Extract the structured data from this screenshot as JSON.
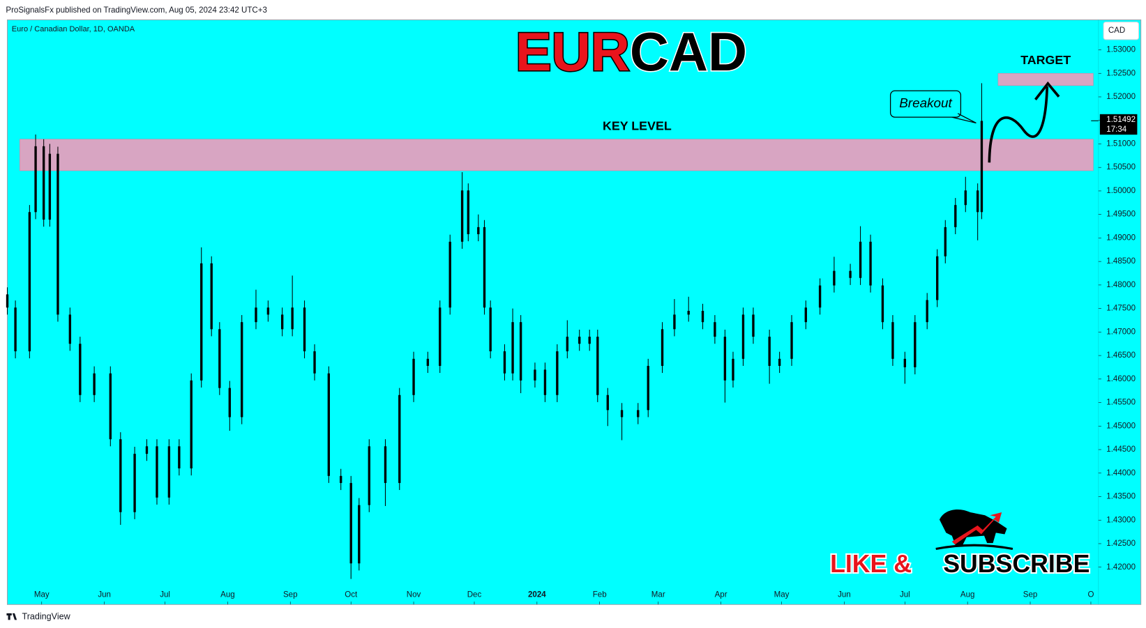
{
  "chart_data": {
    "type": "candlestick",
    "published": "ProSignalsFx published on TradingView.com, Aug 05, 2024 23:42 UTC+3",
    "symbol": "Euro / Canadian Dollar, 1D, OANDA",
    "title_base": "EUR",
    "title_quote": "CAD",
    "currency": "CAD",
    "color": "#000000",
    "background": "#00ffff",
    "x": [
      -17,
      -13,
      -6,
      -3,
      1,
      4,
      8,
      14,
      19,
      26,
      34,
      39,
      46,
      52,
      57,
      63,
      68,
      74,
      79,
      84,
      88,
      93,
      99,
      106,
      112,
      119,
      124,
      130,
      135,
      142,
      148,
      153,
      157,
      162,
      170,
      177,
      184,
      191,
      197,
      202,
      208,
      211,
      216,
      219,
      222,
      229,
      233,
      237,
      244,
      249,
      255,
      260,
      266,
      271,
      275,
      280,
      287,
      295,
      300,
      307,
      313,
      320,
      327,
      333,
      338,
      342,
      347,
      352,
      360,
      365,
      371,
      378,
      385,
      392,
      400,
      405,
      410,
      416,
      421,
      427,
      432,
      438,
      443,
      447,
      452,
      457,
      463,
      465
    ],
    "open": [
      1.478,
      1.4752,
      1.4659,
      1.4955,
      1.5095,
      1.4939,
      1.5079,
      1.4737,
      1.4675,
      1.4566,
      1.4612,
      1.4472,
      1.4317,
      1.4441,
      1.4457,
      1.4348,
      1.4457,
      1.441,
      1.4597,
      1.4846,
      1.4706,
      1.4581,
      1.4519,
      1.4721,
      1.4752,
      1.4737,
      1.4706,
      1.4752,
      1.4659,
      1.4612,
      1.4394,
      1.4379,
      1.4208,
      1.4332,
      1.4457,
      1.4379,
      1.4566,
      1.4643,
      1.4628,
      1.4752,
      1.4892,
      1.5001,
      1.4908,
      1.4923,
      1.4752,
      1.4659,
      1.4612,
      1.4721,
      1.4597,
      1.462,
      1.4566,
      1.4659,
      1.469,
      1.4675,
      1.469,
      1.4566,
      1.4534,
      1.4519,
      1.4534,
      1.4628,
      1.4706,
      1.4737,
      1.4745,
      1.4721,
      1.469,
      1.4597,
      1.4643,
      1.4737,
      1.469,
      1.4628,
      1.4643,
      1.4721,
      1.4752,
      1.4799,
      1.483,
      1.4815,
      1.4892,
      1.4799,
      1.4721,
      1.4643,
      1.4625,
      1.4721,
      1.4768,
      1.4861,
      1.4923,
      1.497,
      1.5001,
      1.4955
    ],
    "high": [
      1.4795,
      1.4767,
      1.497,
      1.512,
      1.511,
      1.51,
      1.5094,
      1.4752,
      1.469,
      1.4627,
      1.4627,
      1.4487,
      1.4456,
      1.4472,
      1.4472,
      1.4472,
      1.4472,
      1.4612,
      1.488,
      1.4861,
      1.4721,
      1.4596,
      1.4736,
      1.479,
      1.4767,
      1.4752,
      1.482,
      1.4767,
      1.4674,
      1.4627,
      1.4409,
      1.4394,
      1.4347,
      1.4472,
      1.4472,
      1.4581,
      1.4658,
      1.4658,
      1.4767,
      1.4907,
      1.504,
      1.5016,
      1.495,
      1.4938,
      1.4767,
      1.4674,
      1.475,
      1.4736,
      1.4635,
      1.4635,
      1.4674,
      1.4725,
      1.4705,
      1.4705,
      1.4705,
      1.4581,
      1.4549,
      1.4549,
      1.4643,
      1.4721,
      1.477,
      1.4775,
      1.476,
      1.4736,
      1.4705,
      1.4658,
      1.4752,
      1.4752,
      1.4705,
      1.4658,
      1.4736,
      1.4767,
      1.4814,
      1.486,
      1.4845,
      1.4925,
      1.4907,
      1.4814,
      1.4736,
      1.4658,
      1.4736,
      1.4783,
      1.4876,
      1.4938,
      1.4985,
      1.503,
      1.5016,
      1.5229
    ],
    "low": [
      1.4737,
      1.4644,
      1.4644,
      1.494,
      1.4924,
      1.4924,
      1.4722,
      1.466,
      1.4551,
      1.4551,
      1.4457,
      1.429,
      1.4302,
      1.4426,
      1.4333,
      1.4333,
      1.4395,
      1.4395,
      1.4582,
      1.4691,
      1.4566,
      1.449,
      1.4504,
      1.4706,
      1.4722,
      1.4691,
      1.4691,
      1.4644,
      1.4597,
      1.4379,
      1.4364,
      1.4175,
      1.4193,
      1.4317,
      1.433,
      1.4364,
      1.4551,
      1.4613,
      1.4613,
      1.4737,
      1.4877,
      1.4893,
      1.4893,
      1.4737,
      1.4644,
      1.4597,
      1.4597,
      1.457,
      1.4582,
      1.4551,
      1.4551,
      1.4644,
      1.466,
      1.466,
      1.4551,
      1.45,
      1.447,
      1.4504,
      1.4519,
      1.4613,
      1.4691,
      1.4722,
      1.4706,
      1.4675,
      1.455,
      1.4582,
      1.4628,
      1.4675,
      1.459,
      1.4613,
      1.4628,
      1.4706,
      1.4737,
      1.4784,
      1.48,
      1.48,
      1.4784,
      1.4706,
      1.4628,
      1.459,
      1.461,
      1.4706,
      1.4753,
      1.4846,
      1.4908,
      1.4955,
      1.4895,
      1.494
    ],
    "close": [
      1.4752,
      1.4659,
      1.4955,
      1.5095,
      1.4939,
      1.5079,
      1.4737,
      1.4675,
      1.4566,
      1.4612,
      1.4472,
      1.4317,
      1.4441,
      1.4457,
      1.4348,
      1.4457,
      1.441,
      1.4597,
      1.4846,
      1.4706,
      1.4581,
      1.4519,
      1.4721,
      1.4752,
      1.4737,
      1.4706,
      1.4752,
      1.4659,
      1.4612,
      1.4394,
      1.4379,
      1.4208,
      1.4332,
      1.4457,
      1.4379,
      1.4566,
      1.4643,
      1.4628,
      1.4752,
      1.4892,
      1.5001,
      1.4908,
      1.4923,
      1.4752,
      1.4659,
      1.4612,
      1.4721,
      1.4597,
      1.462,
      1.4566,
      1.4659,
      1.469,
      1.4675,
      1.469,
      1.4566,
      1.4534,
      1.4519,
      1.4534,
      1.4628,
      1.4706,
      1.4737,
      1.4745,
      1.4721,
      1.469,
      1.4597,
      1.4643,
      1.4737,
      1.469,
      1.4628,
      1.4643,
      1.4721,
      1.4752,
      1.4799,
      1.483,
      1.4815,
      1.4892,
      1.4799,
      1.4721,
      1.4643,
      1.4625,
      1.4721,
      1.4768,
      1.4861,
      1.4923,
      1.497,
      1.5001,
      1.4955,
      1.5149
    ],
    "xlim": [
      -17,
      522
    ],
    "xticks": [
      {
        "value": 0,
        "label": "May"
      },
      {
        "value": 31,
        "label": "Jun"
      },
      {
        "value": 61,
        "label": "Jul"
      },
      {
        "value": 92,
        "label": "Aug"
      },
      {
        "value": 123,
        "label": "Sep"
      },
      {
        "value": 153,
        "label": "Oct"
      },
      {
        "value": 184,
        "label": "Nov"
      },
      {
        "value": 214,
        "label": "Dec"
      },
      {
        "value": 245,
        "label": "2024"
      },
      {
        "value": 276,
        "label": "Feb"
      },
      {
        "value": 305,
        "label": "Mar"
      },
      {
        "value": 336,
        "label": "Apr"
      },
      {
        "value": 366,
        "label": "May"
      },
      {
        "value": 397,
        "label": "Jun"
      },
      {
        "value": 427,
        "label": "Jul"
      },
      {
        "value": 458,
        "label": "Aug"
      },
      {
        "value": 489,
        "label": "Sep"
      },
      {
        "value": 519,
        "label": "O"
      }
    ],
    "ylim": [
      1.41206,
      1.53638
    ],
    "yticks": [
      {
        "value": 1.42,
        "label": "1.42000"
      },
      {
        "value": 1.425,
        "label": "1.42500"
      },
      {
        "value": 1.43,
        "label": "1.43000"
      },
      {
        "value": 1.435,
        "label": "1.43500"
      },
      {
        "value": 1.44,
        "label": "1.44000"
      },
      {
        "value": 1.445,
        "label": "1.44500"
      },
      {
        "value": 1.45,
        "label": "1.45000"
      },
      {
        "value": 1.455,
        "label": "1.45500"
      },
      {
        "value": 1.46,
        "label": "1.46000"
      },
      {
        "value": 1.465,
        "label": "1.46500"
      },
      {
        "value": 1.47,
        "label": "1.47000"
      },
      {
        "value": 1.475,
        "label": "1.47500"
      },
      {
        "value": 1.48,
        "label": "1.48000"
      },
      {
        "value": 1.485,
        "label": "1.48500"
      },
      {
        "value": 1.49,
        "label": "1.49000"
      },
      {
        "value": 1.495,
        "label": "1.49500"
      },
      {
        "value": 1.5,
        "label": "1.50000"
      },
      {
        "value": 1.505,
        "label": "1.50500"
      },
      {
        "value": 1.51,
        "label": "1.51000"
      },
      {
        "value": 1.515,
        "label": "1.51500"
      },
      {
        "value": 1.52,
        "label": "1.52000"
      },
      {
        "value": 1.525,
        "label": "1.52500"
      },
      {
        "value": 1.53,
        "label": "1.53000"
      }
    ],
    "last_price": 1.51492,
    "countdown": "17:34",
    "key_level": {
      "label": "KEY LEVEL",
      "range": [
        1.5043,
        1.511
      ],
      "color": "#d8a5c2"
    },
    "target": {
      "label": "TARGET",
      "range": [
        1.5224,
        1.525
      ],
      "color": "#d8a5c2"
    },
    "breakout": "Breakout",
    "promo_like": "LIKE &",
    "promo_subscribe": "SUBSCRIBE",
    "footer": "TradingView"
  }
}
